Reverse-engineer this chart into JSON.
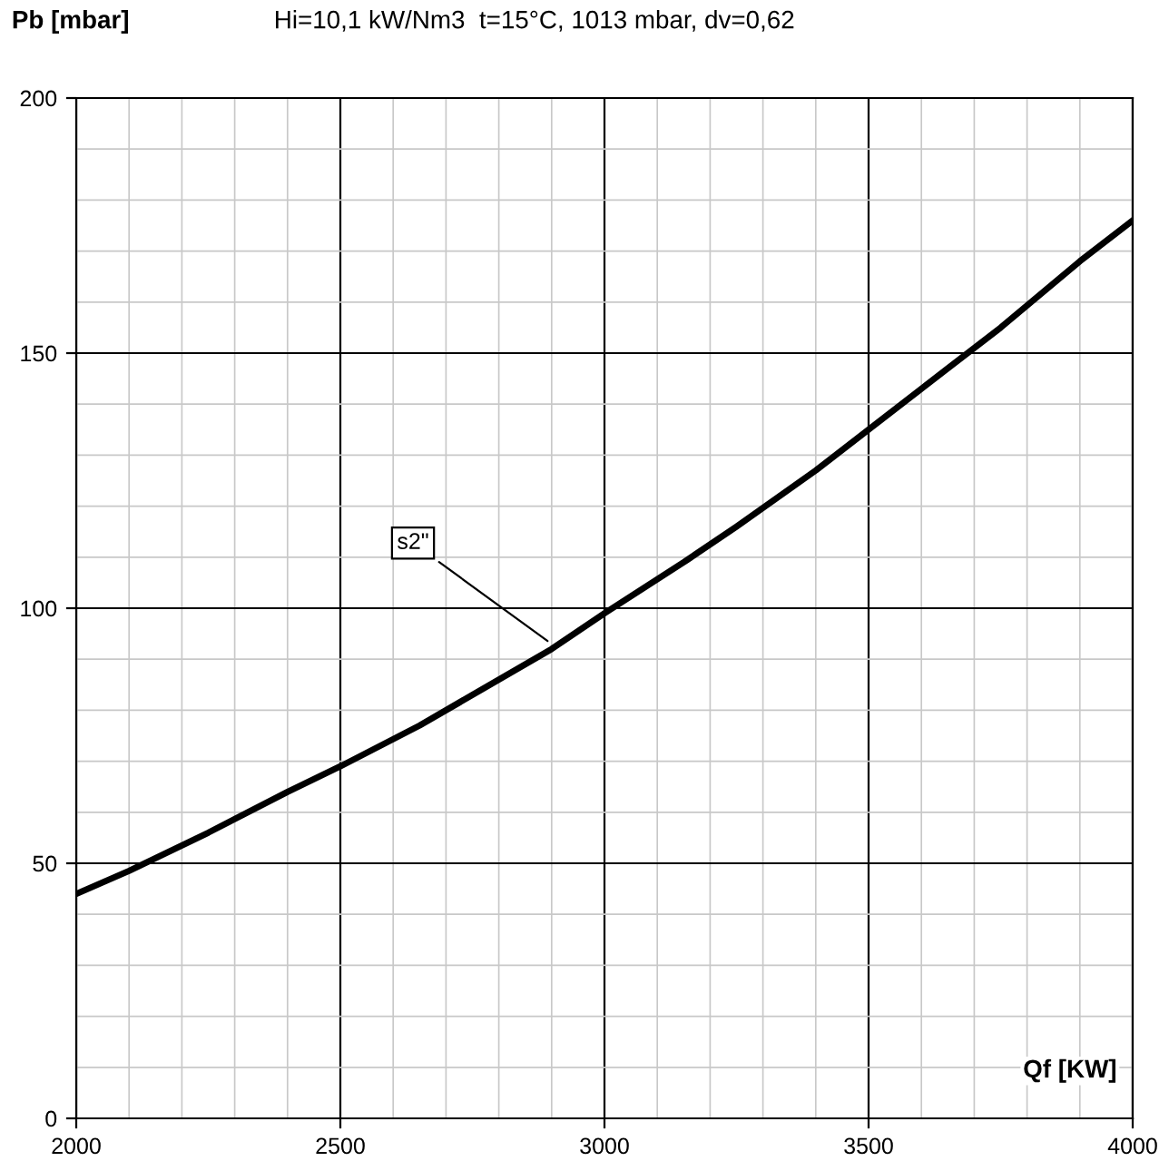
{
  "chart_data": {
    "type": "line",
    "title": "Hi=10,1 kW/Nm3  t=15°C, 1013 mbar, dv=0,62",
    "xlabel": "Qf [KW]",
    "ylabel": "Pb [mbar]",
    "x": [
      2000,
      2100,
      2250,
      2400,
      2500,
      2650,
      2750,
      2900,
      3000,
      3150,
      3250,
      3400,
      3500,
      3650,
      3750,
      3900,
      4000
    ],
    "series": [
      {
        "color": "#000000",
        "values": [
          44,
          48.5,
          56,
          64,
          69,
          77,
          83,
          92,
          99,
          109,
          116,
          127,
          135,
          147,
          155,
          168,
          176
        ]
      }
    ],
    "annotations": [
      {
        "text": "s2\"",
        "x": 2900,
        "y": 93
      }
    ],
    "xlim": [
      2000,
      4000
    ],
    "ylim": [
      0,
      200
    ],
    "xticks": [
      2000,
      2500,
      3000,
      3500,
      4000
    ],
    "yticks": [
      0,
      50,
      100,
      150,
      200
    ],
    "grid": true,
    "legend": false,
    "marker": "none",
    "line_style": "solid"
  }
}
